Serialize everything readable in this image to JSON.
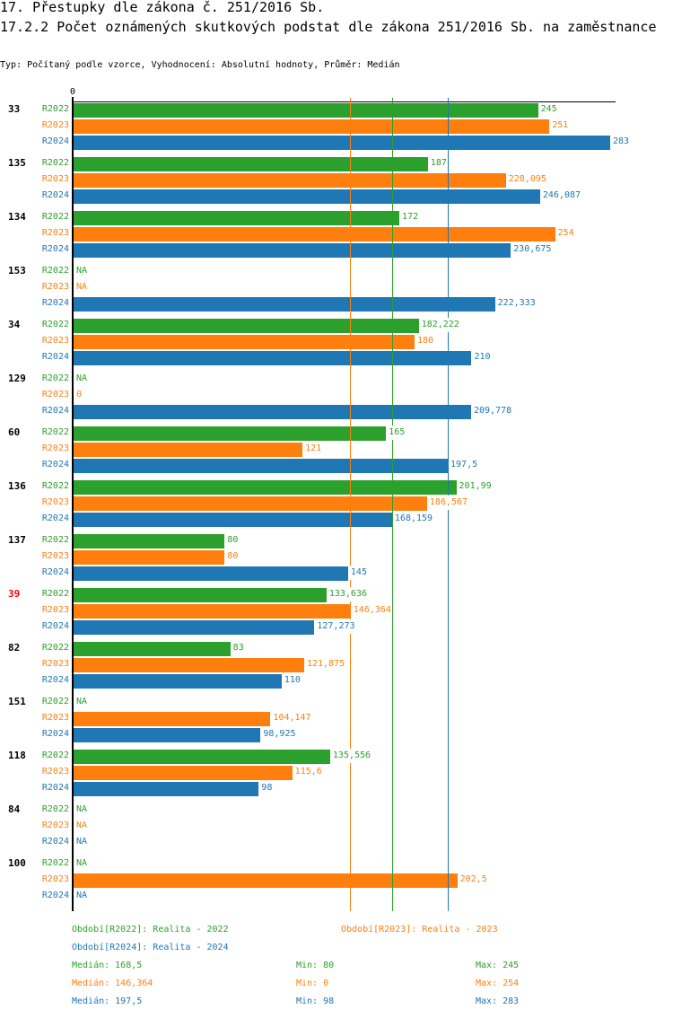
{
  "header": {
    "title": "17. Přestupky dle zákona č. 251/2016 Sb.",
    "subtitle": "17.2.2 Počet oznámených skutkových podstat dle zákona 251/2016 Sb. na zaměstnance",
    "meta": "Typ: Počítaný podle vzorce, Vyhodnocení: Absolutní hodnoty, Průměr: Medián"
  },
  "chart_data": {
    "type": "bar",
    "orientation": "horizontal",
    "title": "17.2.2 Počet oznámených skutkových podstat dle zákona 251/2016 Sb. na zaměstnance",
    "xlabel": "",
    "ylabel": "",
    "x_tick_labels": [
      "0"
    ],
    "xlim": [
      0,
      283
    ],
    "grid": false,
    "legend_position": "bottom",
    "highlighted_categories": [
      "39"
    ],
    "highlight_color": "#ff0000",
    "na_label": "NA",
    "categories": [
      "33",
      "135",
      "134",
      "153",
      "34",
      "129",
      "60",
      "136",
      "137",
      "39",
      "82",
      "151",
      "118",
      "84",
      "100"
    ],
    "series": [
      {
        "name": "R2022",
        "color": "#2ca02c",
        "values": [
          245,
          187,
          172,
          null,
          182.222,
          null,
          165,
          201.99,
          80,
          133.636,
          83,
          null,
          135.556,
          null,
          null
        ],
        "labels": [
          "245",
          "187",
          "172",
          "NA",
          "182,222",
          "NA",
          "165",
          "201,99",
          "80",
          "133,636",
          "83",
          "NA",
          "135,556",
          "NA",
          "NA"
        ],
        "median": 168.5
      },
      {
        "name": "R2023",
        "color": "#ff7f0e",
        "values": [
          251,
          228.095,
          254,
          null,
          180,
          0,
          121,
          186.567,
          80,
          146.364,
          121.875,
          104.147,
          115.6,
          null,
          202.5
        ],
        "labels": [
          "251",
          "228,095",
          "254",
          "NA",
          "180",
          "0",
          "121",
          "186,567",
          "80",
          "146,364",
          "121,875",
          "104,147",
          "115,6",
          "NA",
          "202,5"
        ],
        "median": 146.364
      },
      {
        "name": "R2024",
        "color": "#1f77b4",
        "values": [
          283,
          246.087,
          230.675,
          222.333,
          210,
          209.778,
          197.5,
          168.159,
          145,
          127.273,
          110,
          98.925,
          98,
          null,
          null
        ],
        "labels": [
          "283",
          "246,087",
          "230,675",
          "222,333",
          "210",
          "209,778",
          "197,5",
          "168,159",
          "145",
          "127,273",
          "110",
          "98,925",
          "98",
          "NA",
          "NA"
        ],
        "median": 197.5
      }
    ]
  },
  "legend": {
    "periods": [
      {
        "text": "Období[R2022]: Realita - 2022",
        "color": "#2ca02c"
      },
      {
        "text": "Období[R2023]: Realita - 2023",
        "color": "#ff7f0e"
      },
      {
        "text": "Období[R2024]: Realita - 2024",
        "color": "#1f77b4"
      }
    ],
    "stats": [
      {
        "median": "Medián: 168,5",
        "min": "Min: 80",
        "max": "Max: 245",
        "color": "#2ca02c"
      },
      {
        "median": "Medián: 146,364",
        "min": "Min: 0",
        "max": "Max: 254",
        "color": "#ff7f0e"
      },
      {
        "median": "Medián: 197,5",
        "min": "Min: 98",
        "max": "Max: 283",
        "color": "#1f77b4"
      }
    ]
  }
}
